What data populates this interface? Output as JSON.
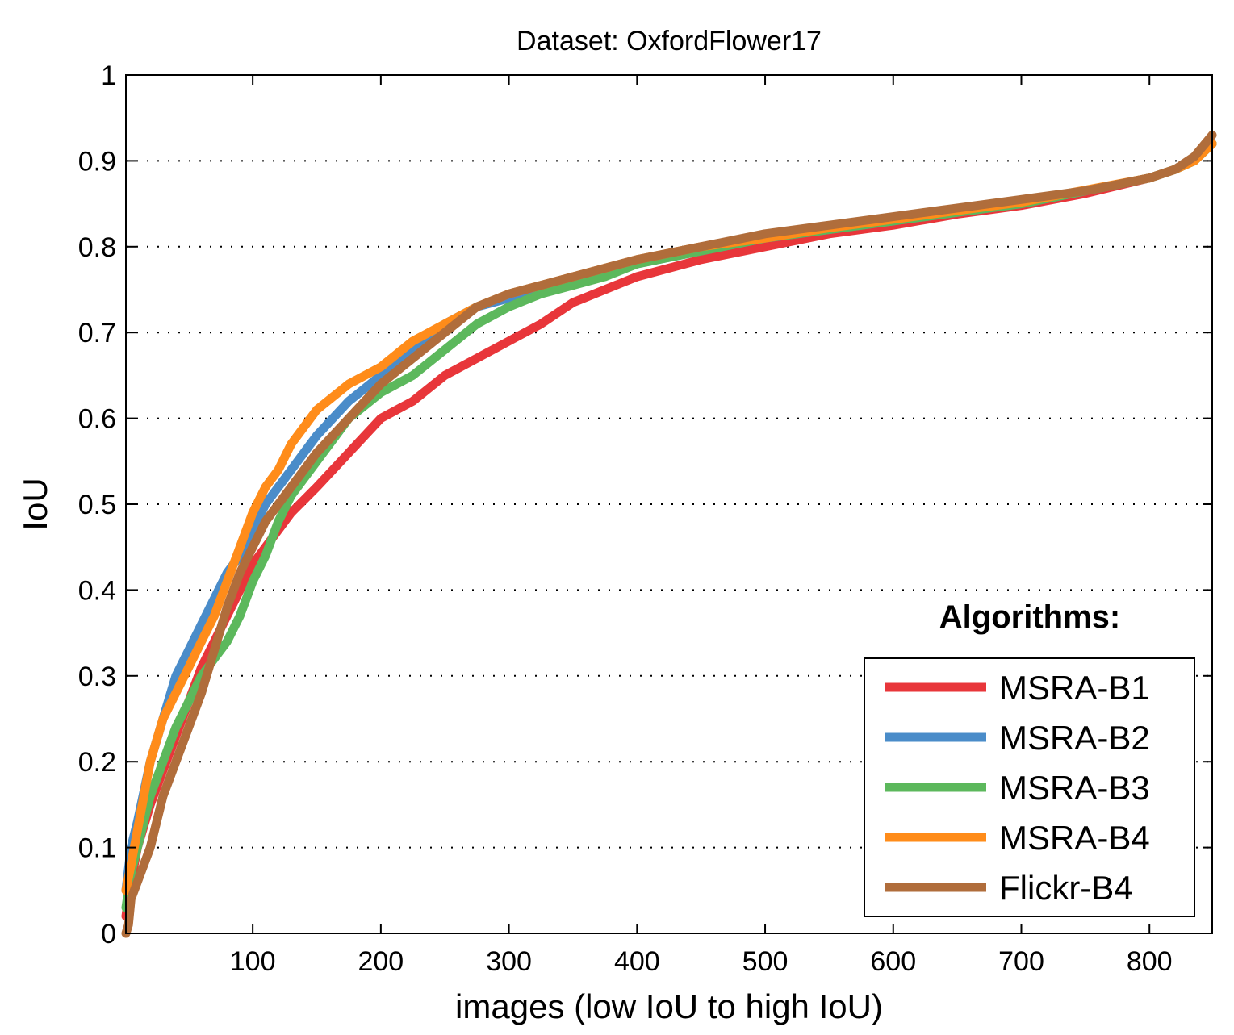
{
  "chart_data": {
    "type": "line",
    "title": "Dataset: OxfordFlower17",
    "xlabel": "images (low IoU to high IoU)",
    "ylabel": "IoU",
    "xlim": [
      1,
      849
    ],
    "ylim": [
      0,
      1
    ],
    "xticks": [
      100,
      200,
      300,
      400,
      500,
      600,
      700,
      800
    ],
    "yticks": [
      0,
      0.1,
      0.2,
      0.3,
      0.4,
      0.5,
      0.6,
      0.7,
      0.8,
      0.9,
      1
    ],
    "ytick_labels": [
      "0",
      "0.1",
      "0.2",
      "0.3",
      "0.4",
      "0.5",
      "0.6",
      "0.7",
      "0.8",
      "0.9",
      "1"
    ],
    "grid": "horizontal-dotted",
    "legend_title": "Algorithms:",
    "legend_position": "bottom-right",
    "series": [
      {
        "name": "MSRA-B1",
        "color": "#e8363a",
        "x": [
          1,
          5,
          10,
          20,
          30,
          40,
          50,
          60,
          70,
          80,
          90,
          100,
          110,
          120,
          130,
          150,
          175,
          200,
          225,
          250,
          275,
          300,
          325,
          350,
          375,
          400,
          450,
          500,
          550,
          600,
          650,
          700,
          750,
          800,
          820,
          835,
          849
        ],
        "y": [
          0.02,
          0.06,
          0.1,
          0.15,
          0.19,
          0.23,
          0.27,
          0.31,
          0.34,
          0.37,
          0.4,
          0.43,
          0.45,
          0.47,
          0.49,
          0.52,
          0.56,
          0.6,
          0.62,
          0.65,
          0.67,
          0.69,
          0.71,
          0.735,
          0.75,
          0.765,
          0.785,
          0.8,
          0.815,
          0.825,
          0.838,
          0.848,
          0.862,
          0.88,
          0.89,
          0.9,
          0.92
        ]
      },
      {
        "name": "MSRA-B2",
        "color": "#4a8cc9",
        "x": [
          1,
          5,
          10,
          20,
          30,
          40,
          50,
          60,
          70,
          80,
          90,
          100,
          110,
          120,
          130,
          150,
          175,
          200,
          225,
          250,
          275,
          300,
          325,
          350,
          375,
          400,
          450,
          500,
          550,
          600,
          650,
          700,
          750,
          800,
          820,
          835,
          849
        ],
        "y": [
          0.05,
          0.1,
          0.13,
          0.2,
          0.25,
          0.3,
          0.33,
          0.36,
          0.39,
          0.42,
          0.44,
          0.47,
          0.5,
          0.52,
          0.54,
          0.58,
          0.62,
          0.65,
          0.68,
          0.71,
          0.73,
          0.74,
          0.75,
          0.76,
          0.77,
          0.78,
          0.795,
          0.81,
          0.82,
          0.83,
          0.84,
          0.85,
          0.865,
          0.88,
          0.89,
          0.9,
          0.92
        ]
      },
      {
        "name": "MSRA-B3",
        "color": "#5cb85c",
        "x": [
          1,
          5,
          10,
          20,
          30,
          40,
          50,
          60,
          70,
          80,
          90,
          100,
          110,
          120,
          130,
          150,
          175,
          200,
          225,
          250,
          275,
          300,
          325,
          350,
          375,
          400,
          450,
          500,
          550,
          600,
          650,
          700,
          750,
          800,
          820,
          835,
          849
        ],
        "y": [
          0.03,
          0.07,
          0.1,
          0.16,
          0.2,
          0.24,
          0.27,
          0.3,
          0.32,
          0.34,
          0.37,
          0.41,
          0.44,
          0.48,
          0.51,
          0.55,
          0.6,
          0.63,
          0.65,
          0.68,
          0.71,
          0.73,
          0.745,
          0.755,
          0.765,
          0.78,
          0.795,
          0.81,
          0.82,
          0.83,
          0.84,
          0.85,
          0.865,
          0.88,
          0.89,
          0.9,
          0.92
        ]
      },
      {
        "name": "MSRA-B4",
        "color": "#ff8c1a",
        "x": [
          1,
          5,
          10,
          20,
          30,
          40,
          50,
          60,
          70,
          80,
          90,
          100,
          110,
          120,
          130,
          150,
          175,
          200,
          225,
          250,
          275,
          300,
          325,
          350,
          375,
          400,
          450,
          500,
          550,
          600,
          650,
          700,
          750,
          800,
          820,
          835,
          849
        ],
        "y": [
          0.05,
          0.08,
          0.12,
          0.2,
          0.25,
          0.28,
          0.31,
          0.34,
          0.37,
          0.41,
          0.45,
          0.49,
          0.52,
          0.54,
          0.57,
          0.61,
          0.64,
          0.66,
          0.69,
          0.71,
          0.73,
          0.745,
          0.755,
          0.765,
          0.775,
          0.785,
          0.8,
          0.81,
          0.822,
          0.832,
          0.842,
          0.852,
          0.866,
          0.88,
          0.89,
          0.9,
          0.92
        ]
      },
      {
        "name": "Flickr-B4",
        "color": "#b06d3b",
        "x": [
          1,
          3,
          5,
          10,
          20,
          25,
          30,
          40,
          50,
          60,
          70,
          80,
          90,
          100,
          110,
          120,
          130,
          150,
          175,
          200,
          225,
          250,
          275,
          300,
          325,
          350,
          375,
          400,
          450,
          500,
          550,
          600,
          650,
          700,
          750,
          800,
          820,
          835,
          849
        ],
        "y": [
          0,
          0.01,
          0.04,
          0.06,
          0.1,
          0.13,
          0.16,
          0.2,
          0.24,
          0.28,
          0.33,
          0.38,
          0.42,
          0.45,
          0.48,
          0.5,
          0.52,
          0.56,
          0.6,
          0.64,
          0.67,
          0.7,
          0.73,
          0.745,
          0.755,
          0.765,
          0.775,
          0.785,
          0.8,
          0.815,
          0.825,
          0.835,
          0.845,
          0.855,
          0.865,
          0.88,
          0.89,
          0.905,
          0.93
        ]
      }
    ]
  }
}
